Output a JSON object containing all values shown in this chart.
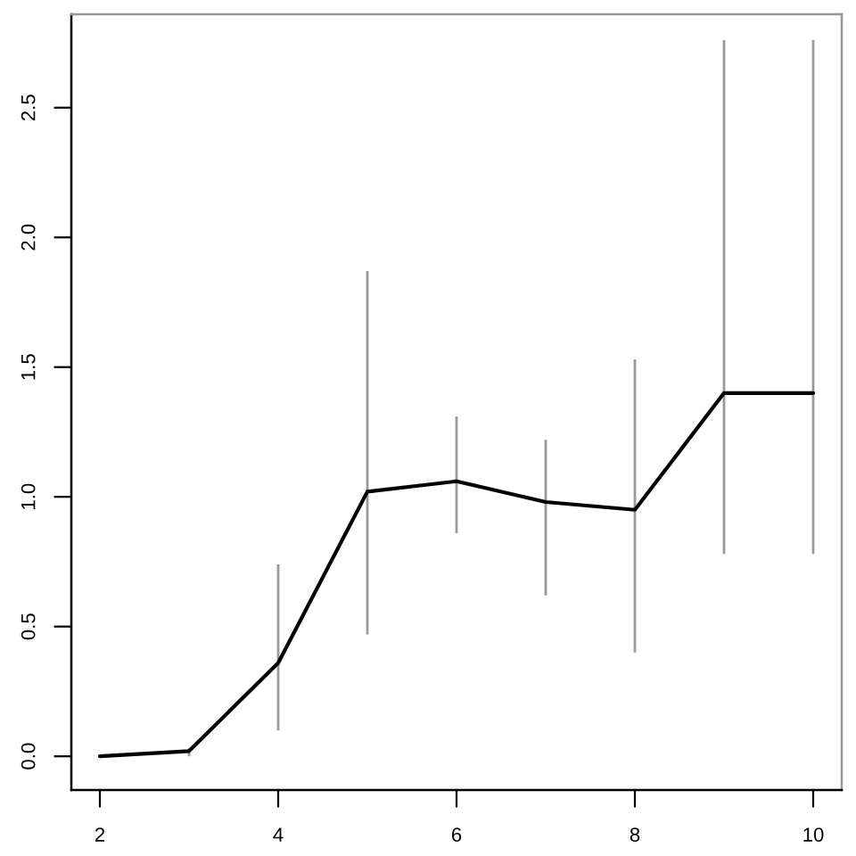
{
  "chart_data": {
    "type": "line",
    "x": [
      2,
      3,
      4,
      5,
      6,
      7,
      8,
      9,
      10
    ],
    "series": [
      {
        "color": "#000000",
        "values": [
          0.0,
          0.02,
          0.36,
          1.02,
          1.06,
          0.98,
          0.95,
          1.4,
          1.4
        ],
        "errors": [
          null,
          [
            0.0,
            0.03
          ],
          [
            0.1,
            0.74
          ],
          [
            0.47,
            1.87
          ],
          [
            0.86,
            1.31
          ],
          [
            0.62,
            1.22
          ],
          [
            0.4,
            1.53
          ],
          [
            0.78,
            2.76
          ],
          [
            0.78,
            2.76
          ]
        ]
      }
    ],
    "xlim": [
      1.68,
      10.32
    ],
    "ylim": [
      -0.13,
      2.86
    ],
    "xticks": [
      2,
      4,
      6,
      8,
      10
    ],
    "yticks": [
      {
        "value": 0,
        "label": "0.0"
      },
      0.5,
      {
        "value": 1,
        "label": "1.0"
      },
      1.5,
      {
        "value": 2,
        "label": "2.0"
      },
      2.5
    ],
    "grid": false,
    "marker": "none",
    "line_style": "solid"
  }
}
